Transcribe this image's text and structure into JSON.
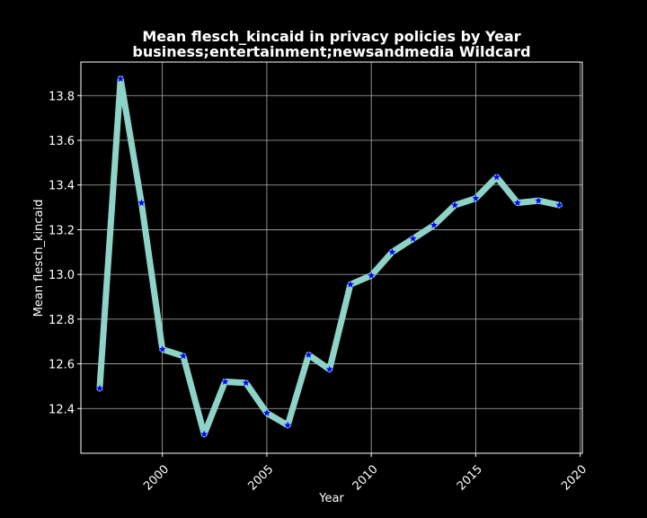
{
  "chart_data": {
    "type": "line",
    "title": "Mean flesch_kincaid in privacy policies by Year",
    "subtitle": "business;entertainment;newsandmedia Wildcard",
    "xlabel": "Year",
    "ylabel": "Mean flesch_kincaid",
    "xlim": [
      1996.1,
      2020.1
    ],
    "ylim": [
      12.2,
      13.95
    ],
    "x_ticks": [
      2000,
      2005,
      2010,
      2015,
      2020
    ],
    "y_ticks": [
      12.4,
      12.6,
      12.8,
      13.0,
      13.2,
      13.4,
      13.6,
      13.8
    ],
    "grid": true,
    "line_color": "#8dd3c7",
    "marker_color": "#0000ff",
    "marker": "star",
    "x": [
      1997,
      1998,
      1999,
      2000,
      2001,
      2002,
      2003,
      2004,
      2005,
      2006,
      2007,
      2008,
      2009,
      2010,
      2011,
      2012,
      2013,
      2014,
      2015,
      2016,
      2017,
      2018,
      2019
    ],
    "values": [
      12.49,
      13.875,
      13.32,
      12.665,
      12.635,
      12.285,
      12.52,
      12.515,
      12.38,
      12.325,
      12.64,
      12.575,
      12.955,
      12.995,
      13.1,
      13.16,
      13.22,
      13.31,
      13.34,
      13.435,
      13.32,
      13.33,
      13.31
    ]
  }
}
